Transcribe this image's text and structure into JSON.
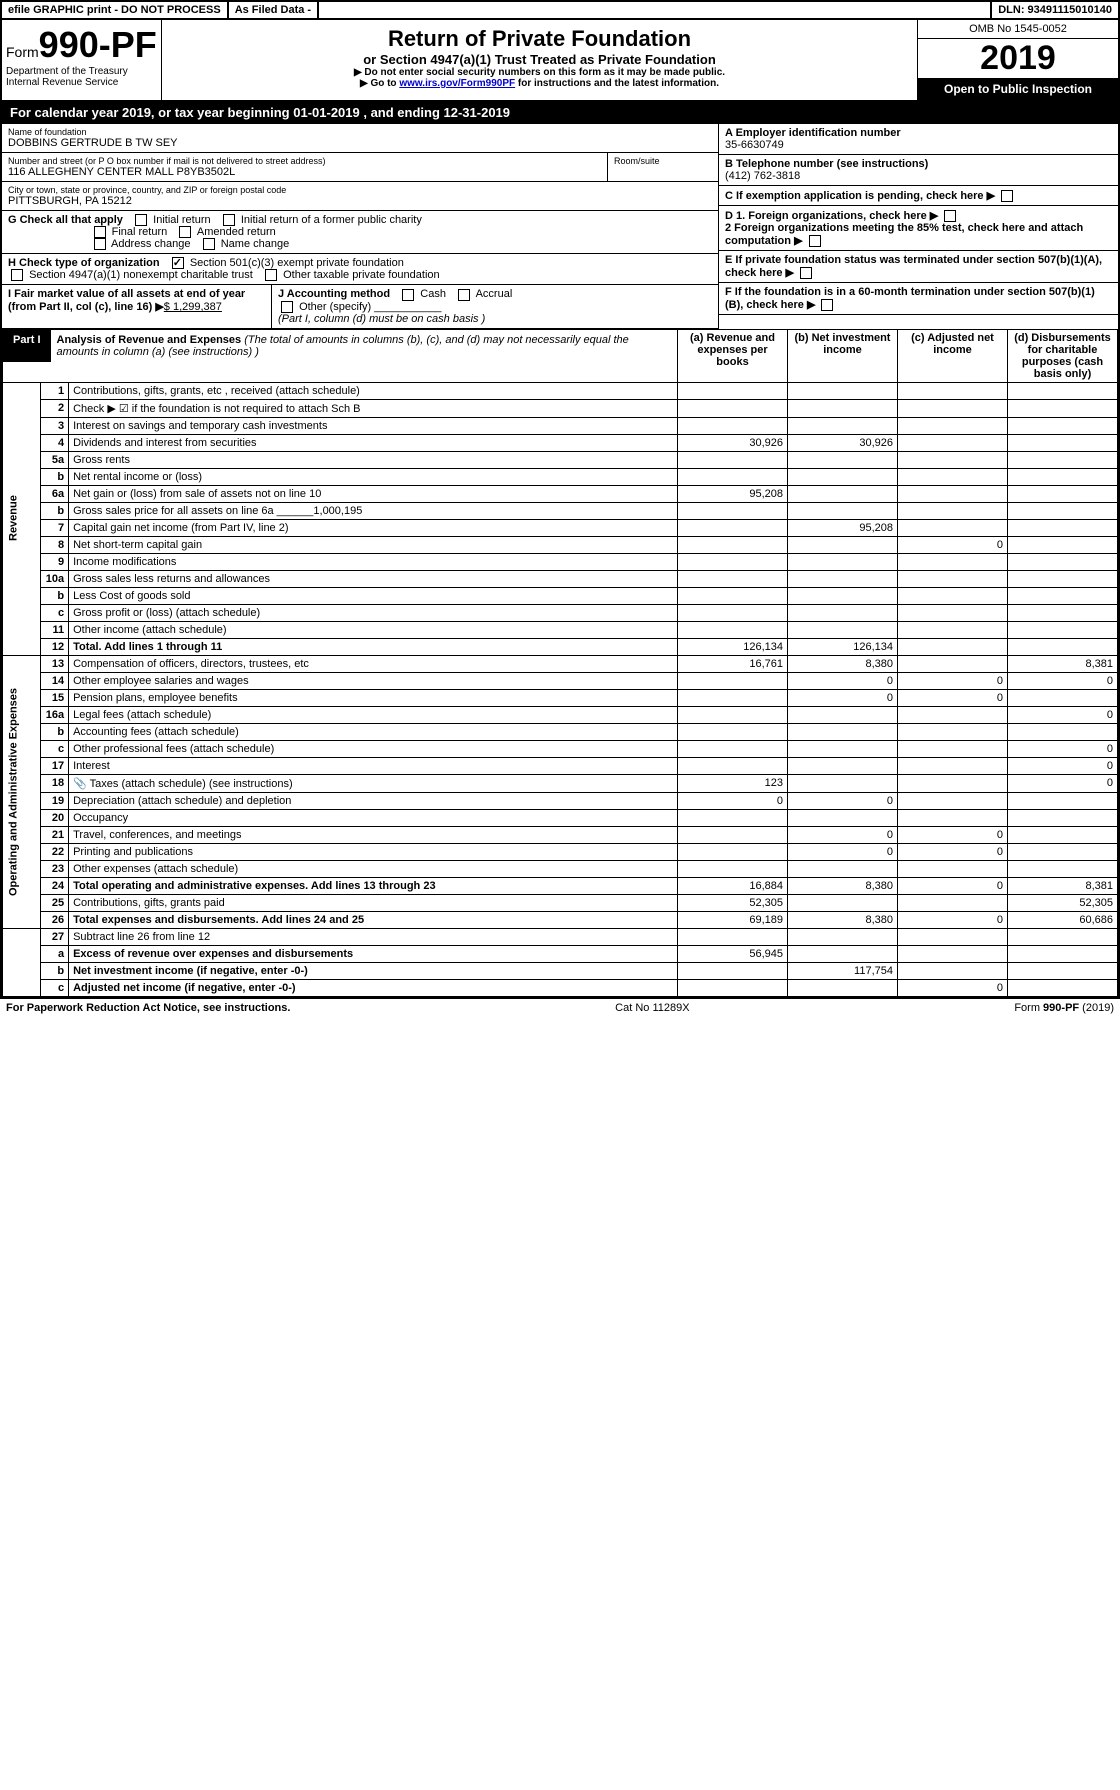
{
  "topbar": {
    "efile": "efile GRAPHIC print - DO NOT PROCESS",
    "asfiled": "As Filed Data -",
    "dln": "DLN: 93491115010140"
  },
  "header": {
    "form_prefix": "Form",
    "form_num": "990-PF",
    "dept": "Department of the Treasury",
    "irs": "Internal Revenue Service",
    "title": "Return of Private Foundation",
    "subtitle": "or Section 4947(a)(1) Trust Treated as Private Foundation",
    "warn1": "▶ Do not enter social security numbers on this form as it may be made public.",
    "warn2_pre": "▶ Go to ",
    "warn2_link": "www.irs.gov/Form990PF",
    "warn2_post": " for instructions and the latest information.",
    "omb": "OMB No 1545-0052",
    "year": "2019",
    "open": "Open to Public Inspection"
  },
  "calyear": {
    "text_pre": "For calendar year 2019, or tax year beginning ",
    "begin": "01-01-2019",
    "mid": " , and ending ",
    "end": "12-31-2019"
  },
  "foundation": {
    "name_label": "Name of foundation",
    "name": "DOBBINS GERTRUDE B TW SEY",
    "addr_label": "Number and street (or P O  box number if mail is not delivered to street address)",
    "addr": "116 ALLEGHENY CENTER MALL P8YB3502L",
    "room_label": "Room/suite",
    "city_label": "City or town, state or province, country, and ZIP or foreign postal code",
    "city": "PITTSBURGH, PA  15212",
    "ein_label": "A Employer identification number",
    "ein": "35-6630749",
    "phone_label": "B Telephone number (see instructions)",
    "phone": "(412) 762-3818",
    "c_label": "C If exemption application is pending, check here",
    "d1": "D 1. Foreign organizations, check here",
    "d2": "2 Foreign organizations meeting the 85% test, check here and attach computation",
    "e": "E  If private foundation status was terminated under section 507(b)(1)(A), check here",
    "f": "F  If the foundation is in a 60-month termination under section 507(b)(1)(B), check here"
  },
  "g": {
    "label": "G Check all that apply",
    "opts": [
      "Initial return",
      "Initial return of a former public charity",
      "Final return",
      "Amended return",
      "Address change",
      "Name change"
    ]
  },
  "h": {
    "label": "H Check type of organization",
    "opt1": "Section 501(c)(3) exempt private foundation",
    "opt2": "Section 4947(a)(1) nonexempt charitable trust",
    "opt3": "Other taxable private foundation"
  },
  "ij": {
    "i_label": "I Fair market value of all assets at end of year (from Part II, col  (c), line 16)",
    "i_val": "$  1,299,387",
    "j_label": "J Accounting method",
    "j_cash": "Cash",
    "j_accrual": "Accrual",
    "j_other": "Other (specify)",
    "j_note": "(Part I, column (d) must be on cash basis )"
  },
  "part1": {
    "label": "Part I",
    "title": "Analysis of Revenue and Expenses",
    "note": " (The total of amounts in columns (b), (c), and (d) may not necessarily equal the amounts in column (a) (see instructions) )",
    "col_a": "(a) Revenue and expenses per books",
    "col_b": "(b) Net investment income",
    "col_c": "(c) Adjusted net income",
    "col_d": "(d) Disbursements for charitable purposes (cash basis only)"
  },
  "sections": {
    "revenue": "Revenue",
    "expenses": "Operating and Administrative Expenses"
  },
  "rows": [
    {
      "n": "1",
      "d": "Contributions, gifts, grants, etc , received (attach schedule)",
      "a": "",
      "b": "",
      "c": "",
      "dd": ""
    },
    {
      "n": "2",
      "d": "Check ▶ ☑ if the foundation is not required to attach Sch  B",
      "a": "",
      "b": "",
      "c": "",
      "dd": ""
    },
    {
      "n": "3",
      "d": "Interest on savings and temporary cash investments",
      "a": "",
      "b": "",
      "c": "",
      "dd": ""
    },
    {
      "n": "4",
      "d": "Dividends and interest from securities",
      "a": "30,926",
      "b": "30,926",
      "c": "",
      "dd": ""
    },
    {
      "n": "5a",
      "d": "Gross rents",
      "a": "",
      "b": "",
      "c": "",
      "dd": ""
    },
    {
      "n": "b",
      "d": "Net rental income or (loss)",
      "a": "",
      "b": "",
      "c": "",
      "dd": ""
    },
    {
      "n": "6a",
      "d": "Net gain or (loss) from sale of assets not on line 10",
      "a": "95,208",
      "b": "",
      "c": "",
      "dd": ""
    },
    {
      "n": "b",
      "d": "Gross sales price for all assets on line 6a ______1,000,195",
      "a": "",
      "b": "",
      "c": "",
      "dd": ""
    },
    {
      "n": "7",
      "d": "Capital gain net income (from Part IV, line 2)",
      "a": "",
      "b": "95,208",
      "c": "",
      "dd": ""
    },
    {
      "n": "8",
      "d": "Net short-term capital gain",
      "a": "",
      "b": "",
      "c": "0",
      "dd": ""
    },
    {
      "n": "9",
      "d": "Income modifications",
      "a": "",
      "b": "",
      "c": "",
      "dd": ""
    },
    {
      "n": "10a",
      "d": "Gross sales less returns and allowances",
      "a": "",
      "b": "",
      "c": "",
      "dd": ""
    },
    {
      "n": "b",
      "d": "Less  Cost of goods sold",
      "a": "",
      "b": "",
      "c": "",
      "dd": ""
    },
    {
      "n": "c",
      "d": "Gross profit or (loss) (attach schedule)",
      "a": "",
      "b": "",
      "c": "",
      "dd": ""
    },
    {
      "n": "11",
      "d": "Other income (attach schedule)",
      "a": "",
      "b": "",
      "c": "",
      "dd": ""
    },
    {
      "n": "12",
      "d": "Total. Add lines 1 through 11",
      "a": "126,134",
      "b": "126,134",
      "c": "",
      "dd": "",
      "bold": true
    }
  ],
  "exp_rows": [
    {
      "n": "13",
      "d": "Compensation of officers, directors, trustees, etc",
      "a": "16,761",
      "b": "8,380",
      "c": "",
      "dd": "8,381"
    },
    {
      "n": "14",
      "d": "Other employee salaries and wages",
      "a": "",
      "b": "0",
      "c": "0",
      "dd": "0"
    },
    {
      "n": "15",
      "d": "Pension plans, employee benefits",
      "a": "",
      "b": "0",
      "c": "0",
      "dd": ""
    },
    {
      "n": "16a",
      "d": "Legal fees (attach schedule)",
      "a": "",
      "b": "",
      "c": "",
      "dd": "0"
    },
    {
      "n": "b",
      "d": "Accounting fees (attach schedule)",
      "a": "",
      "b": "",
      "c": "",
      "dd": ""
    },
    {
      "n": "c",
      "d": "Other professional fees (attach schedule)",
      "a": "",
      "b": "",
      "c": "",
      "dd": "0"
    },
    {
      "n": "17",
      "d": "Interest",
      "a": "",
      "b": "",
      "c": "",
      "dd": "0"
    },
    {
      "n": "18",
      "d": "Taxes (attach schedule) (see instructions)",
      "a": "123",
      "b": "",
      "c": "",
      "dd": "0",
      "icon": true
    },
    {
      "n": "19",
      "d": "Depreciation (attach schedule) and depletion",
      "a": "0",
      "b": "0",
      "c": "",
      "dd": ""
    },
    {
      "n": "20",
      "d": "Occupancy",
      "a": "",
      "b": "",
      "c": "",
      "dd": ""
    },
    {
      "n": "21",
      "d": "Travel, conferences, and meetings",
      "a": "",
      "b": "0",
      "c": "0",
      "dd": ""
    },
    {
      "n": "22",
      "d": "Printing and publications",
      "a": "",
      "b": "0",
      "c": "0",
      "dd": ""
    },
    {
      "n": "23",
      "d": "Other expenses (attach schedule)",
      "a": "",
      "b": "",
      "c": "",
      "dd": ""
    },
    {
      "n": "24",
      "d": "Total operating and administrative expenses. Add lines 13 through 23",
      "a": "16,884",
      "b": "8,380",
      "c": "0",
      "dd": "8,381",
      "bold": true
    },
    {
      "n": "25",
      "d": "Contributions, gifts, grants paid",
      "a": "52,305",
      "b": "",
      "c": "",
      "dd": "52,305"
    },
    {
      "n": "26",
      "d": "Total expenses and disbursements. Add lines 24 and 25",
      "a": "69,189",
      "b": "8,380",
      "c": "0",
      "dd": "60,686",
      "bold": true
    }
  ],
  "net_rows": [
    {
      "n": "27",
      "d": "Subtract line 26 from line 12",
      "a": "",
      "b": "",
      "c": "",
      "dd": ""
    },
    {
      "n": "a",
      "d": "Excess of revenue over expenses and disbursements",
      "a": "56,945",
      "b": "",
      "c": "",
      "dd": "",
      "bold": true
    },
    {
      "n": "b",
      "d": "Net investment income (if negative, enter -0-)",
      "a": "",
      "b": "117,754",
      "c": "",
      "dd": "",
      "bold": true
    },
    {
      "n": "c",
      "d": "Adjusted net income (if negative, enter -0-)",
      "a": "",
      "b": "",
      "c": "0",
      "dd": "",
      "bold": true
    }
  ],
  "footer": {
    "left": "For Paperwork Reduction Act Notice, see instructions.",
    "mid": "Cat  No  11289X",
    "right_pre": "Form ",
    "right_form": "990-PF",
    "right_year": " (2019)"
  }
}
